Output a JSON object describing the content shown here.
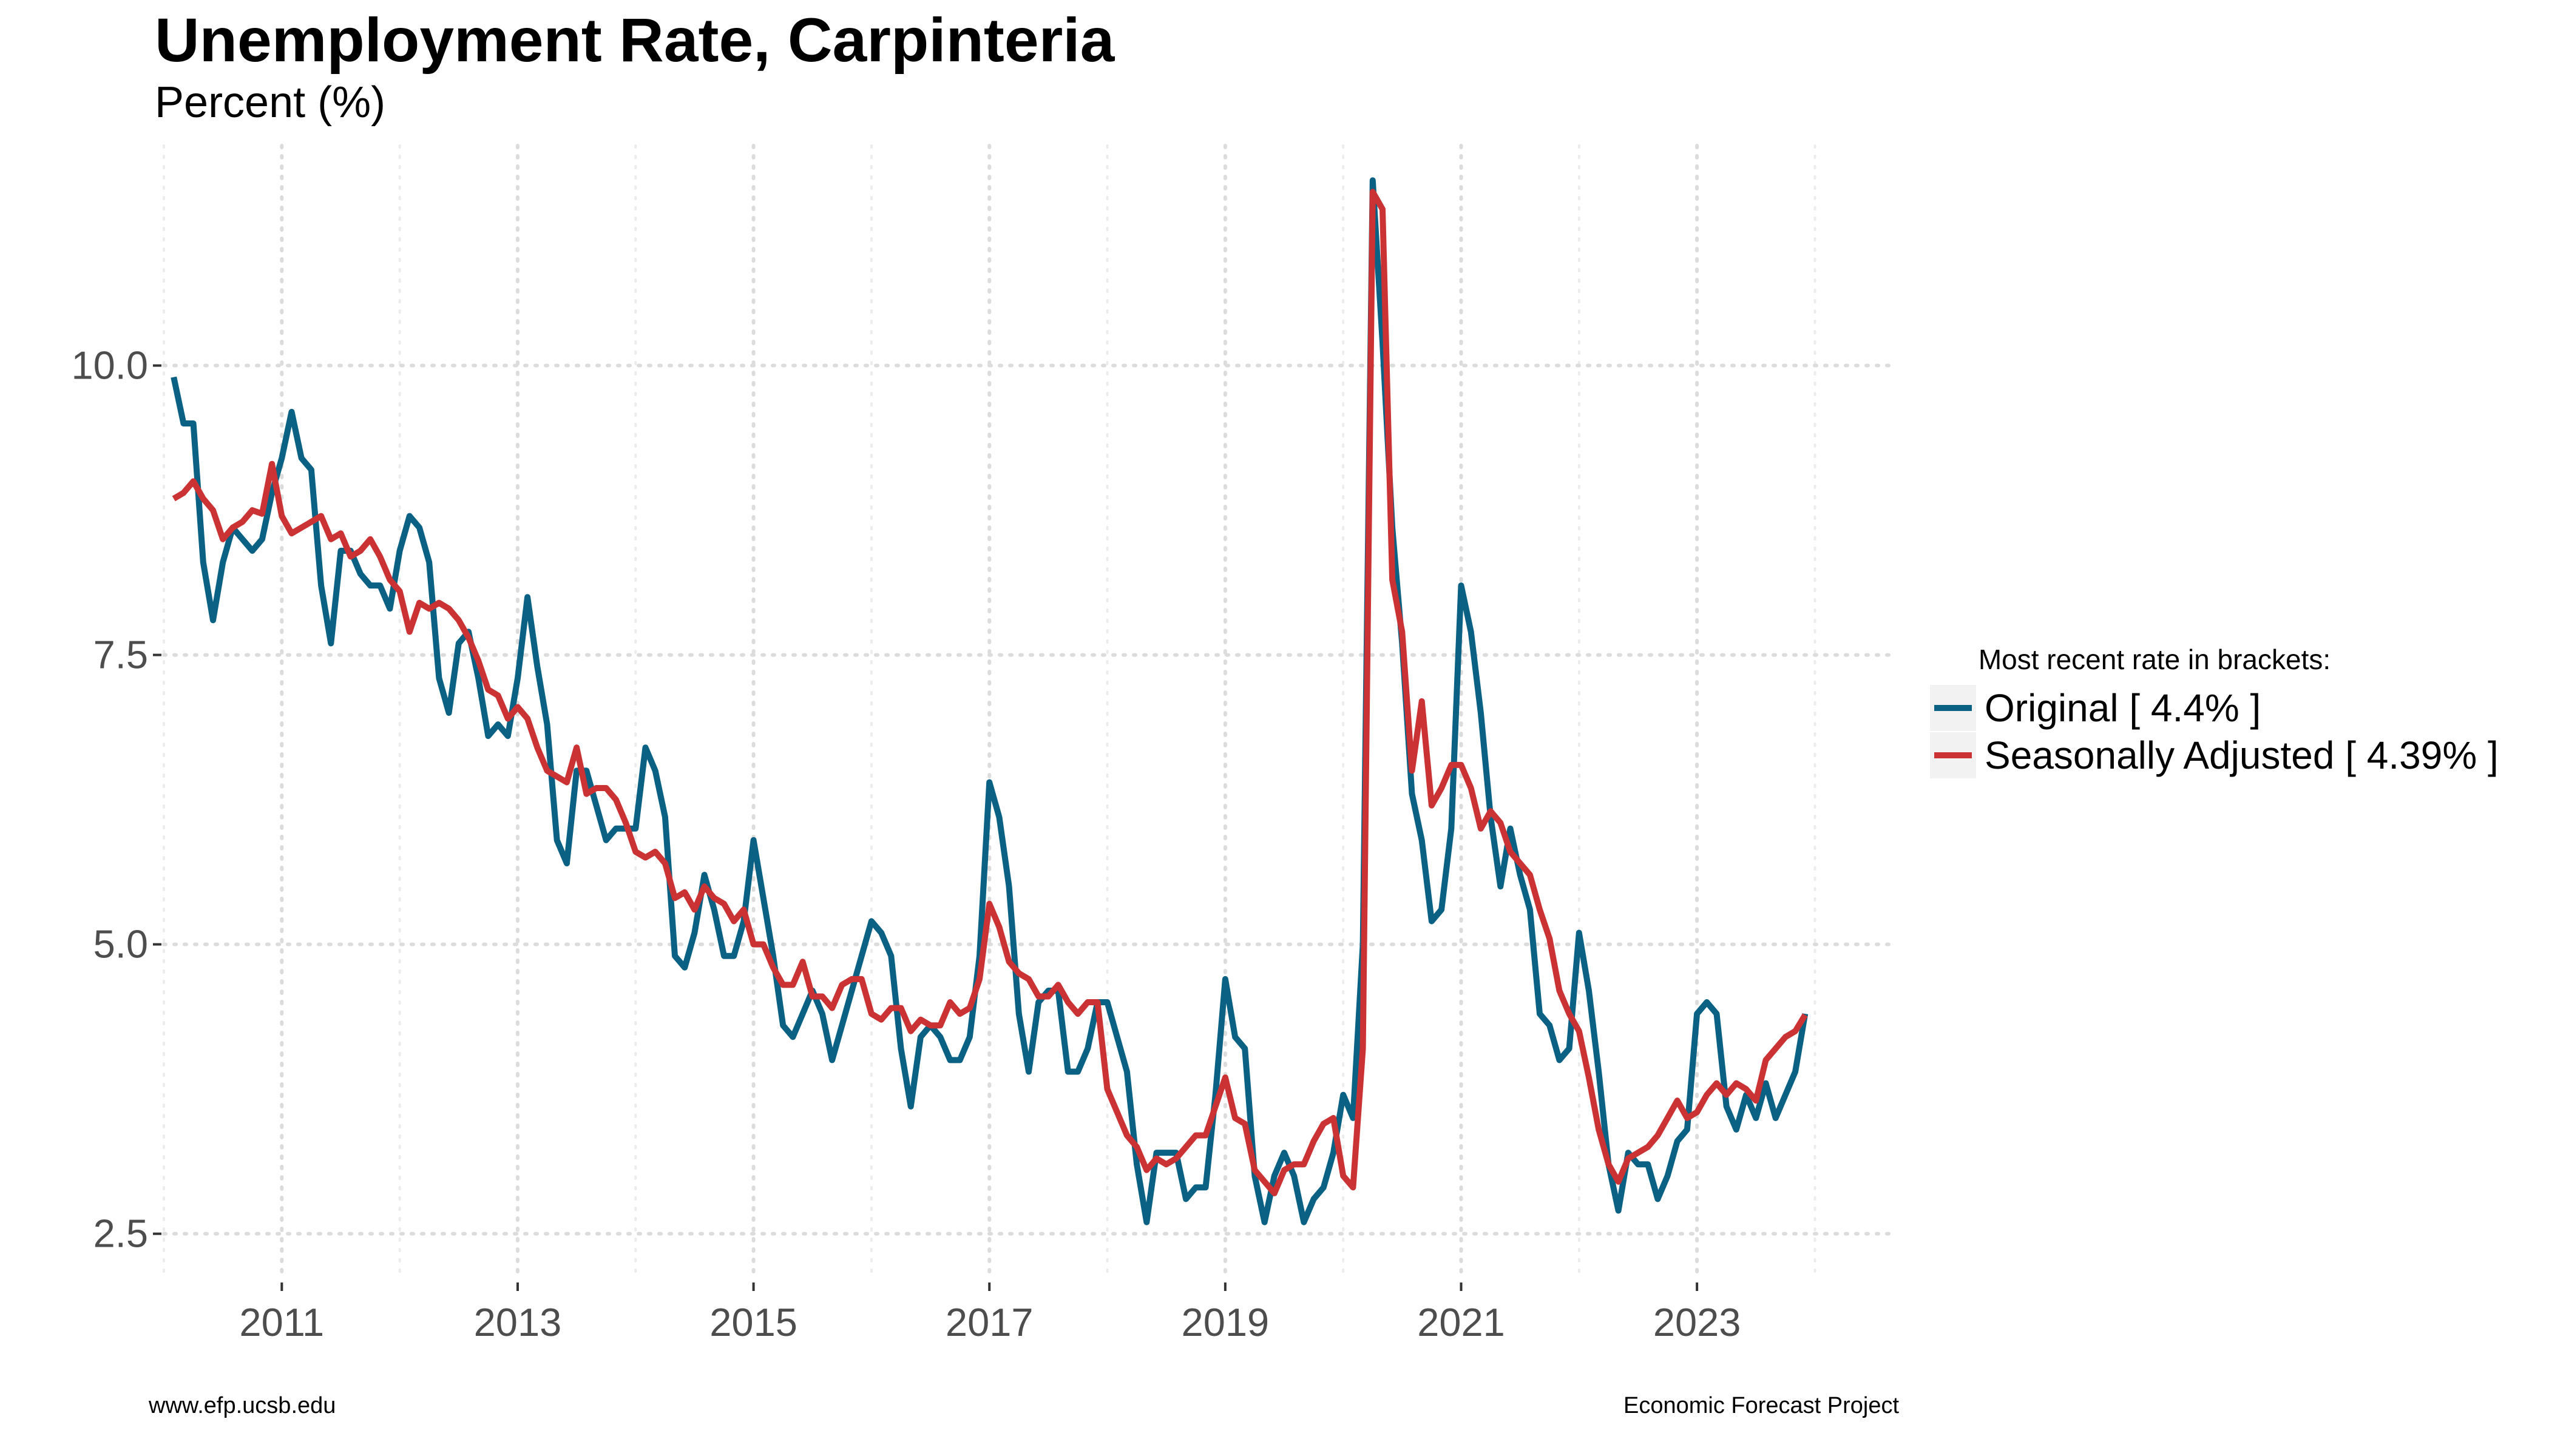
{
  "title": "Unemployment Rate, Carpinteria",
  "subtitle": "Percent (%)",
  "legend": {
    "title": "Most recent rate in brackets:",
    "items": [
      {
        "label": "Original [ 4.4% ]",
        "color": "#0a6183"
      },
      {
        "label": "Seasonally Adjusted [ 4.39% ]",
        "color": "#cb3234"
      }
    ]
  },
  "footer": {
    "left": "www.efp.ucsb.edu",
    "right": "Economic Forecast Project"
  },
  "chart_data": {
    "type": "line",
    "title": "Unemployment Rate, Carpinteria",
    "ylabel": "Percent (%)",
    "xlabel": "",
    "x_start": "2010-02",
    "x_step": "month",
    "xlim": [
      "2010-01",
      "2024-09"
    ],
    "ylim": [
      2.1,
      11.9
    ],
    "x_ticks": [
      2011,
      2013,
      2015,
      2017,
      2019,
      2021,
      2023
    ],
    "y_ticks": [
      "2.5",
      "5.0",
      "7.5",
      "10.0"
    ],
    "grid": "dotted",
    "legend_position": "right",
    "series": [
      {
        "name": "Original",
        "color": "#0a6183",
        "values": [
          9.9,
          9.5,
          9.5,
          8.3,
          7.8,
          8.3,
          8.6,
          8.5,
          8.4,
          8.5,
          8.9,
          9.2,
          9.6,
          9.2,
          9.1,
          8.1,
          7.6,
          8.4,
          8.4,
          8.2,
          8.1,
          8.1,
          7.9,
          8.4,
          8.7,
          8.6,
          8.3,
          7.3,
          7.0,
          7.6,
          7.7,
          7.3,
          6.8,
          6.9,
          6.8,
          7.3,
          8.0,
          7.4,
          6.9,
          5.9,
          5.7,
          6.5,
          6.5,
          6.2,
          5.9,
          6.0,
          6.0,
          6.0,
          6.7,
          6.5,
          6.1,
          4.9,
          4.8,
          5.1,
          5.6,
          5.3,
          4.9,
          4.9,
          5.2,
          5.9,
          5.4,
          4.9,
          4.3,
          4.2,
          4.4,
          4.6,
          4.4,
          4.0,
          4.3,
          4.6,
          4.9,
          5.2,
          5.1,
          4.9,
          4.1,
          3.6,
          4.2,
          4.3,
          4.2,
          4.0,
          4.0,
          4.2,
          4.9,
          6.4,
          6.1,
          5.5,
          4.4,
          3.9,
          4.5,
          4.6,
          4.6,
          3.9,
          3.9,
          4.1,
          4.5,
          4.5,
          4.2,
          3.9,
          3.1,
          2.6,
          3.2,
          3.2,
          3.2,
          2.8,
          2.9,
          2.9,
          3.7,
          4.7,
          4.2,
          4.1,
          3.0,
          2.6,
          3.0,
          3.2,
          3.0,
          2.6,
          2.8,
          2.9,
          3.2,
          3.7,
          3.5,
          5.0,
          11.6,
          10.2,
          8.6,
          7.6,
          6.3,
          5.9,
          5.2,
          5.3,
          6.0,
          8.1,
          7.7,
          7.0,
          6.1,
          5.5,
          6.0,
          5.6,
          5.3,
          4.4,
          4.3,
          4.0,
          4.1,
          5.1,
          4.6,
          3.9,
          3.1,
          2.7,
          3.2,
          3.1,
          3.1,
          2.8,
          3.0,
          3.3,
          3.4,
          4.4,
          4.5,
          4.4,
          3.6,
          3.4,
          3.7,
          3.5,
          3.8,
          3.5,
          3.7,
          3.9,
          4.4
        ]
      },
      {
        "name": "Seasonally Adjusted",
        "color": "#cb3234",
        "values": [
          8.85,
          8.9,
          9.0,
          8.85,
          8.75,
          8.5,
          8.6,
          8.65,
          8.75,
          8.72,
          9.15,
          8.7,
          8.55,
          8.6,
          8.65,
          8.7,
          8.5,
          8.55,
          8.35,
          8.4,
          8.5,
          8.35,
          8.15,
          8.05,
          7.7,
          7.95,
          7.9,
          7.95,
          7.9,
          7.8,
          7.65,
          7.45,
          7.2,
          7.15,
          6.95,
          7.05,
          6.95,
          6.7,
          6.5,
          6.45,
          6.4,
          6.7,
          6.3,
          6.35,
          6.35,
          6.25,
          6.05,
          5.8,
          5.75,
          5.8,
          5.7,
          5.4,
          5.45,
          5.3,
          5.5,
          5.4,
          5.35,
          5.2,
          5.3,
          5.0,
          5.0,
          4.8,
          4.65,
          4.65,
          4.85,
          4.55,
          4.55,
          4.45,
          4.65,
          4.7,
          4.7,
          4.4,
          4.35,
          4.45,
          4.45,
          4.25,
          4.35,
          4.3,
          4.3,
          4.5,
          4.4,
          4.45,
          4.7,
          5.35,
          5.15,
          4.85,
          4.75,
          4.7,
          4.55,
          4.55,
          4.65,
          4.5,
          4.4,
          4.5,
          4.5,
          3.75,
          3.55,
          3.35,
          3.25,
          3.05,
          3.15,
          3.1,
          3.15,
          3.25,
          3.35,
          3.35,
          3.6,
          3.85,
          3.5,
          3.45,
          3.05,
          2.95,
          2.85,
          3.05,
          3.1,
          3.1,
          3.3,
          3.45,
          3.5,
          3.0,
          2.9,
          4.1,
          11.5,
          11.35,
          8.15,
          7.7,
          6.5,
          7.1,
          6.2,
          6.35,
          6.55,
          6.55,
          6.35,
          6.0,
          6.15,
          6.05,
          5.8,
          5.7,
          5.6,
          5.3,
          5.05,
          4.6,
          4.4,
          4.25,
          3.85,
          3.4,
          3.1,
          2.95,
          3.15,
          3.2,
          3.25,
          3.35,
          3.5,
          3.65,
          3.5,
          3.55,
          3.7,
          3.8,
          3.7,
          3.8,
          3.75,
          3.65,
          4.0,
          4.1,
          4.2,
          4.25,
          4.39
        ]
      }
    ]
  }
}
